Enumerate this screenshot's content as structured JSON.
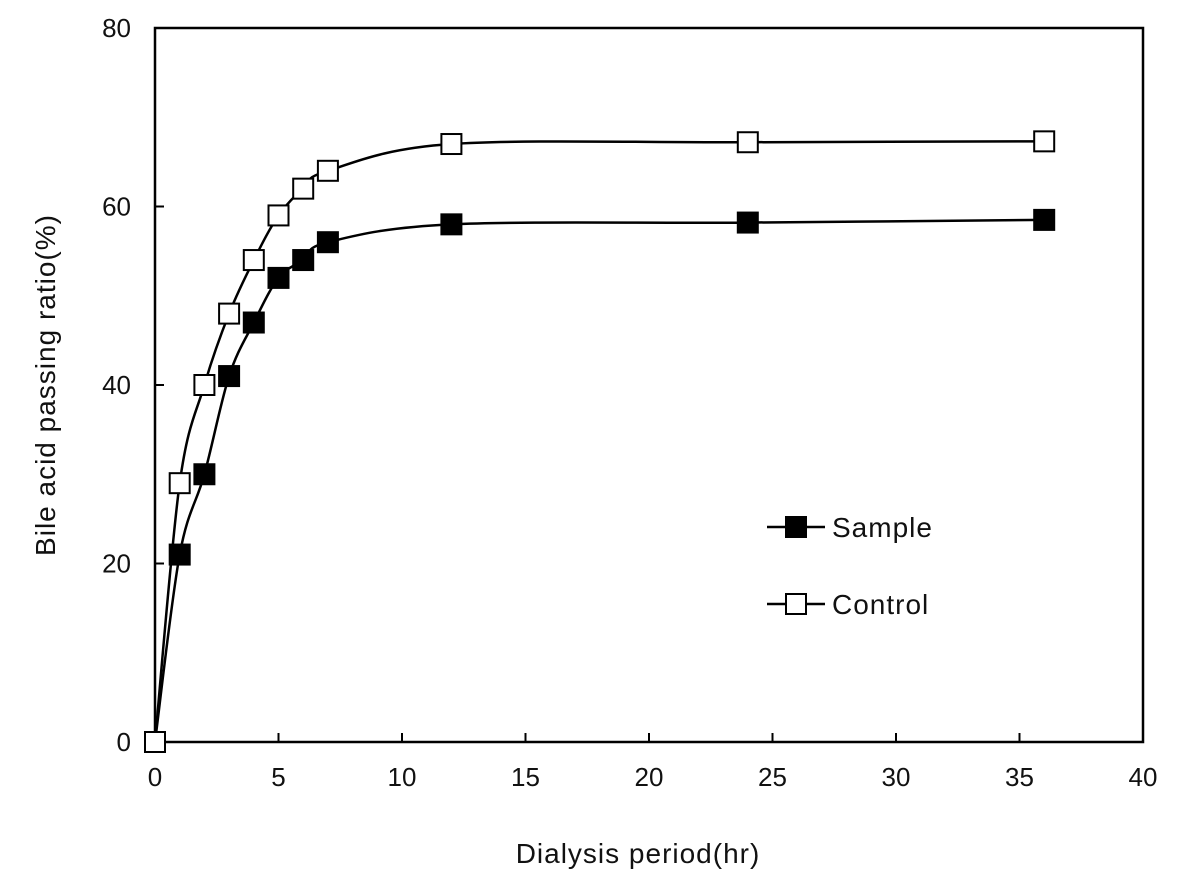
{
  "chart_data": {
    "type": "line",
    "title": "",
    "xlabel": "Dialysis period(hr)",
    "ylabel": "Bile acid passing ratio(%)",
    "xlim": [
      0,
      40
    ],
    "ylim": [
      0,
      80
    ],
    "xticks": [
      0,
      5,
      10,
      15,
      20,
      25,
      30,
      35,
      40
    ],
    "yticks": [
      0,
      20,
      40,
      60,
      80
    ],
    "xtick_labels": [
      "0",
      "5",
      "10",
      "15",
      "20",
      "25",
      "30",
      "35",
      "40"
    ],
    "ytick_labels": [
      "0",
      "20",
      "40",
      "60",
      "80"
    ],
    "grid": false,
    "legend_position": "center-right",
    "series": [
      {
        "name": "Sample",
        "marker": "filled-square",
        "color": "#000000",
        "x": [
          0,
          1,
          2,
          3,
          4,
          5,
          6,
          7,
          12,
          24,
          36
        ],
        "y": [
          0,
          21,
          30,
          41,
          47,
          52,
          54,
          56,
          58,
          58.2,
          58.5
        ]
      },
      {
        "name": "Control",
        "marker": "open-square",
        "color": "#000000",
        "x": [
          0,
          1,
          2,
          3,
          4,
          5,
          6,
          7,
          12,
          24,
          36
        ],
        "y": [
          0,
          29,
          40,
          48,
          54,
          59,
          62,
          64,
          67,
          67.2,
          67.3
        ]
      }
    ]
  }
}
